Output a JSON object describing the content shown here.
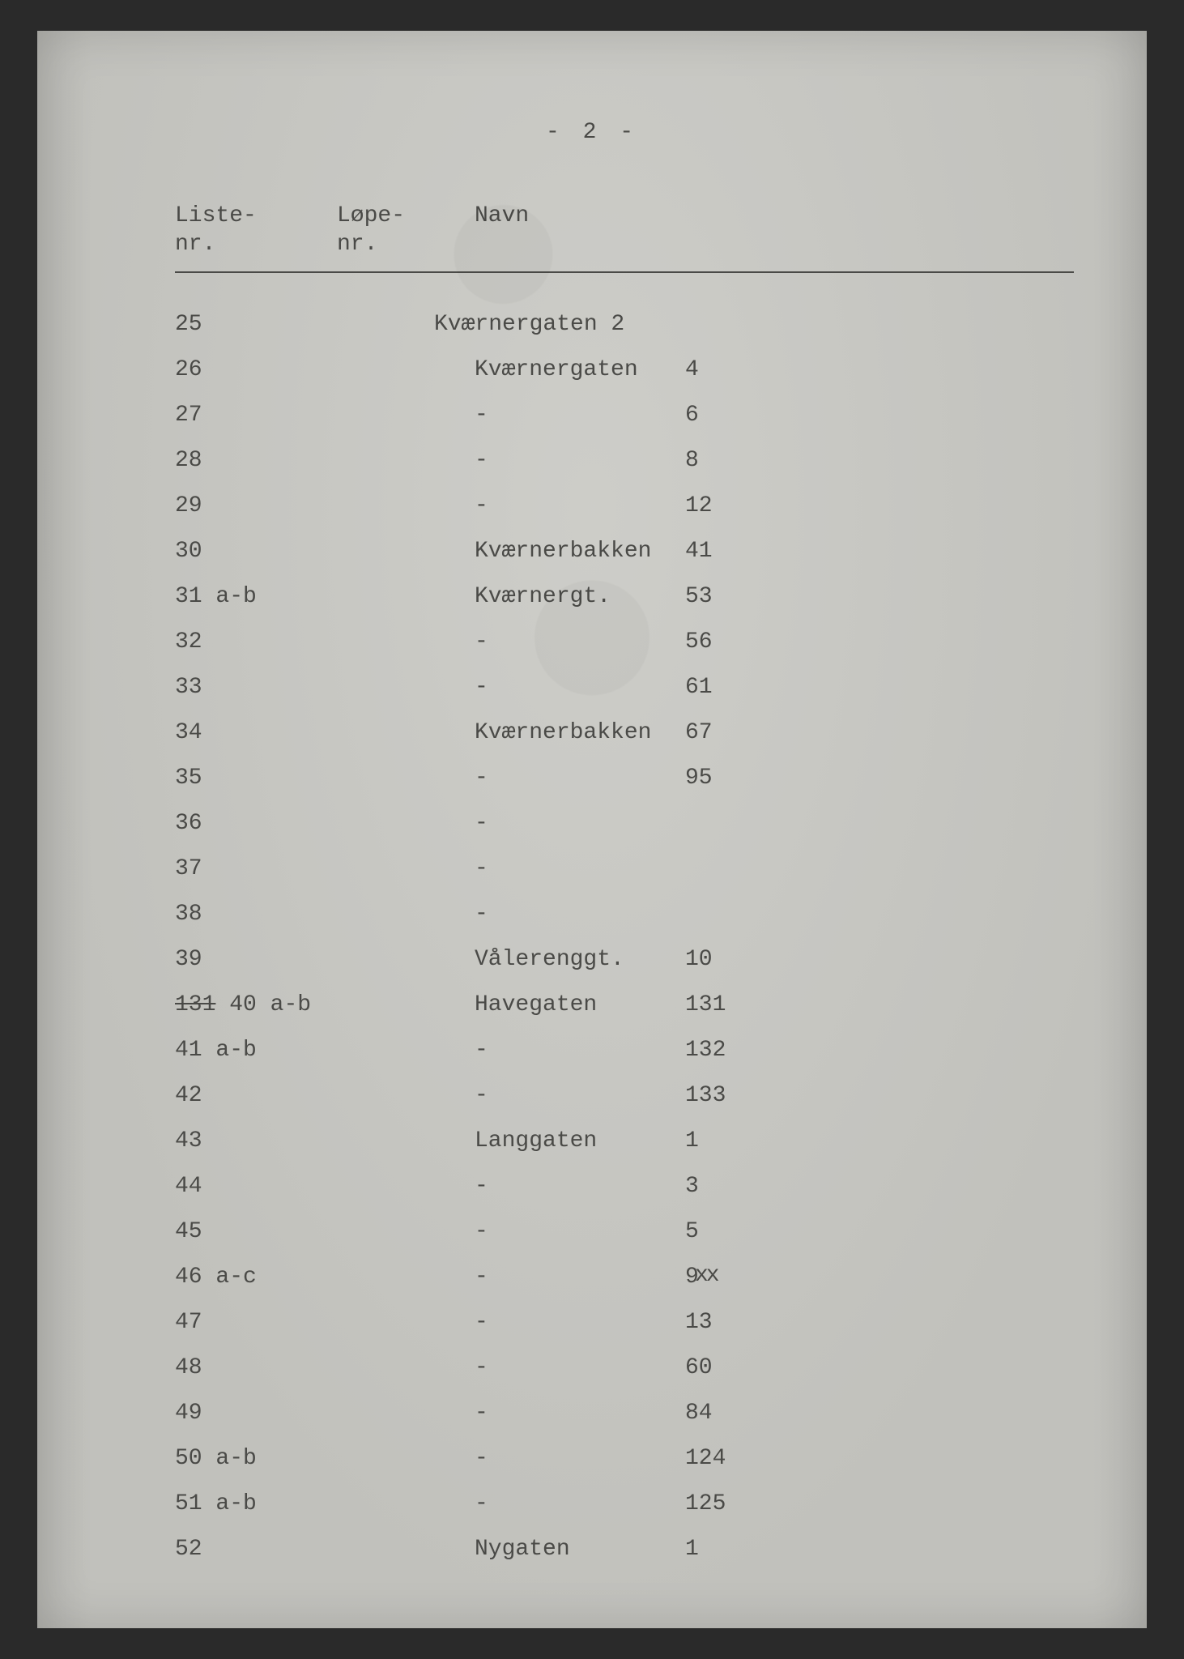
{
  "page_number_display": "- 2 -",
  "header": {
    "liste": "Liste-\nnr.",
    "lope": "Løpe-\nnr.",
    "navn": "Navn"
  },
  "colors": {
    "paper": "#c9c9c4",
    "ink": "#4a4a47",
    "frame": "#2a2a2a",
    "rule": "#4a4a47"
  },
  "typography": {
    "font_family": "Courier / typewriter",
    "body_fontsize_pt": 12,
    "line_spacing_ratio": 1.9
  },
  "rows": [
    {
      "liste": "25",
      "lope": "",
      "name_merged": "Kværnergaten 2"
    },
    {
      "liste": "26",
      "lope": "",
      "name": "Kværnergaten",
      "num": "4"
    },
    {
      "liste": "27",
      "lope": "",
      "name": "-",
      "num": "6"
    },
    {
      "liste": "28",
      "lope": "",
      "name": "-",
      "num": "8"
    },
    {
      "liste": "29",
      "lope": "",
      "name": "-",
      "num": "12"
    },
    {
      "liste": "30",
      "lope": "",
      "name": "Kværnerbakken",
      "num": "41"
    },
    {
      "liste": "31 a-b",
      "lope": "",
      "name": "Kværnergt.",
      "num": "53"
    },
    {
      "liste": "32",
      "lope": "",
      "name": "-",
      "num": "56"
    },
    {
      "liste": "33",
      "lope": "",
      "name": "-",
      "num": "61"
    },
    {
      "liste": "34",
      "lope": "",
      "name": "Kværnerbakken",
      "num": "67"
    },
    {
      "liste": "35",
      "lope": "",
      "name": "-",
      "num": "95"
    },
    {
      "liste": "36",
      "lope": "",
      "name": "-",
      "num": ""
    },
    {
      "liste": "37",
      "lope": "",
      "name": "-",
      "num": ""
    },
    {
      "liste": "38",
      "lope": "",
      "name": "-",
      "num": ""
    },
    {
      "liste": "39",
      "lope": "",
      "name": "Vålerenggt.",
      "num": "10"
    },
    {
      "liste_prefix_struck": "131",
      "liste": "40 a-b",
      "lope": "",
      "name": "Havegaten",
      "num": "131"
    },
    {
      "liste": "41 a-b",
      "lope": "",
      "name": "-",
      "num": "132"
    },
    {
      "liste": "42",
      "lope": "",
      "name": "-",
      "num": "133"
    },
    {
      "liste": "43",
      "lope": "",
      "name": "Langgaten",
      "num": "1"
    },
    {
      "liste": "44",
      "lope": "",
      "name": "-",
      "num": "3"
    },
    {
      "liste": "45",
      "lope": "",
      "name": "-",
      "num": "5"
    },
    {
      "liste": "46 a-c",
      "lope": "",
      "name": "-",
      "num": "9",
      "num_overstrike": "xx"
    },
    {
      "liste": "47",
      "lope": "",
      "name": "-",
      "num": "13"
    },
    {
      "liste": "48",
      "lope": "",
      "name": "-",
      "num": "60"
    },
    {
      "liste": "49",
      "lope": "",
      "name": "-",
      "num": "84"
    },
    {
      "liste": "50 a-b",
      "lope": "",
      "name": "-",
      "num": "124"
    },
    {
      "liste": "51 a-b",
      "lope": "",
      "name": "-",
      "num": "125"
    },
    {
      "liste": "52",
      "lope": "",
      "name": "Nygaten",
      "num": "1"
    }
  ]
}
